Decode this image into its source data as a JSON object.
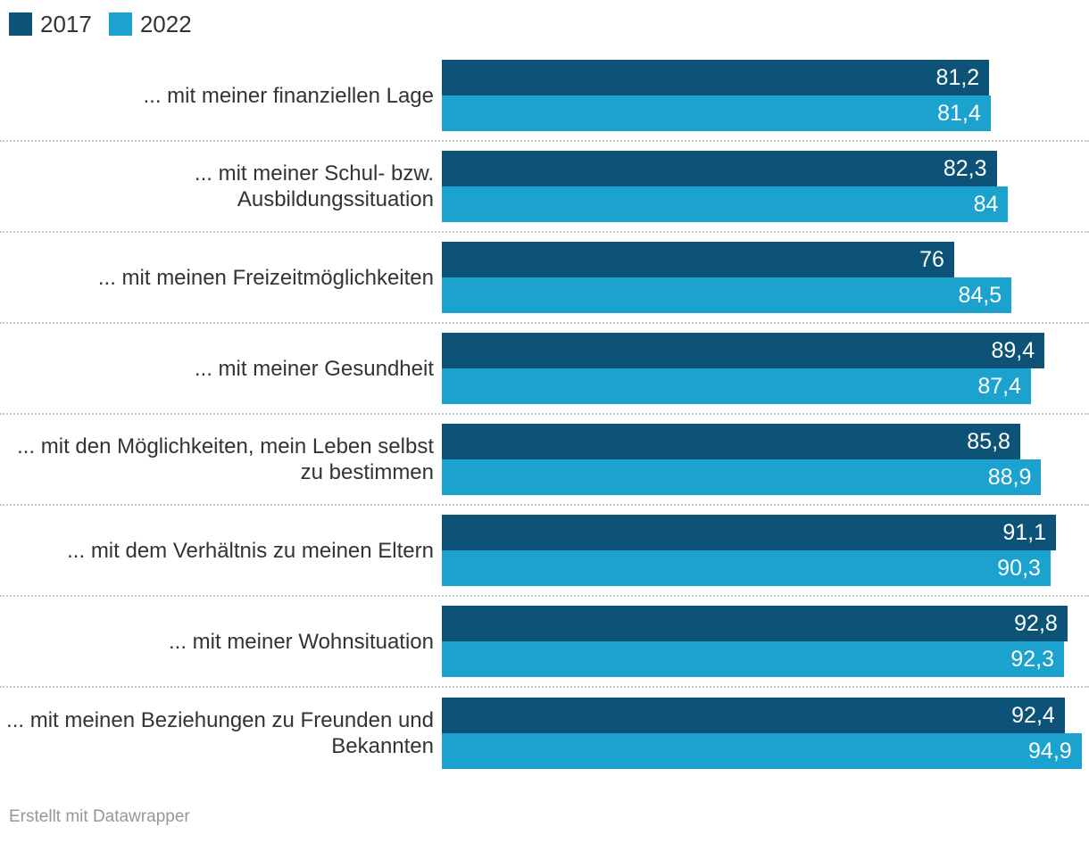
{
  "legend": {
    "items": [
      {
        "label": "2017",
        "color": "#0d5377"
      },
      {
        "label": "2022",
        "color": "#1ca2ce"
      }
    ]
  },
  "footer": {
    "text": "Erstellt mit Datawrapper"
  },
  "colors": {
    "series_2017": "#0d5377",
    "series_2022": "#1ca2ce",
    "bar_value_text": "#ffffff",
    "category_label_text": "#333333",
    "divider": "#c9c9c9",
    "footer_text": "#979797",
    "background": "#ffffff"
  },
  "chart_data": {
    "type": "bar",
    "orientation": "horizontal",
    "grouped": true,
    "title": "",
    "xlabel": "",
    "ylabel": "",
    "xlim": [
      0,
      96
    ],
    "grid": false,
    "legend_position": "top-left",
    "value_decimal_separator": ",",
    "categories": [
      "... mit meiner finanziellen Lage",
      "... mit meiner Schul- bzw. Ausbildungssituation",
      "... mit meinen Freizeitmöglichkeiten",
      "... mit meiner Gesundheit",
      "... mit den Möglichkeiten, mein Leben selbst zu bestimmen",
      "... mit dem Verhältnis zu meinen Eltern",
      "... mit meiner Wohnsituation",
      "... mit meinen Beziehungen zu Freunden und Bekannten"
    ],
    "series": [
      {
        "name": "2017",
        "color": "#0d5377",
        "values": [
          81.2,
          82.3,
          76,
          89.4,
          85.8,
          91.1,
          92.8,
          92.4
        ],
        "labels": [
          "81,2",
          "82,3",
          "76",
          "89,4",
          "85,8",
          "91,1",
          "92,8",
          "92,4"
        ]
      },
      {
        "name": "2022",
        "color": "#1ca2ce",
        "values": [
          81.4,
          84,
          84.5,
          87.4,
          88.9,
          90.3,
          92.3,
          94.9
        ],
        "labels": [
          "81,4",
          "84",
          "84,5",
          "87,4",
          "88,9",
          "90,3",
          "92,3",
          "94,9"
        ]
      }
    ]
  }
}
